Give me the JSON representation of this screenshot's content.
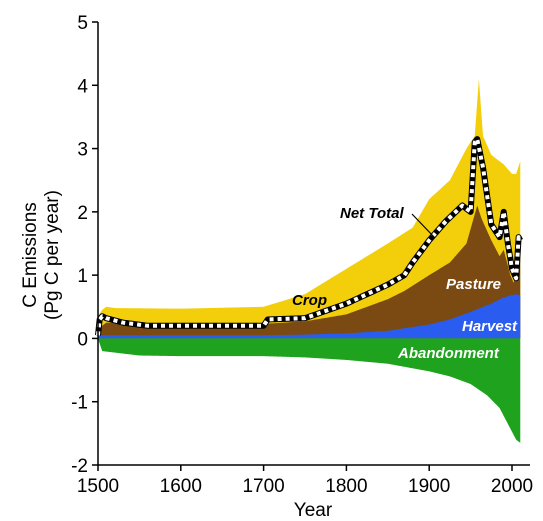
{
  "chart_data": {
    "type": "area",
    "xlabel": "Year",
    "ylabel_line1": "C Emissions",
    "ylabel_line2": "(Pg C per year)",
    "xlim": [
      1500,
      2010
    ],
    "ylim": [
      -2,
      5
    ],
    "xticks": [
      1500,
      1600,
      1700,
      1800,
      1900,
      2000
    ],
    "yticks": [
      -2,
      -1,
      0,
      1,
      2,
      3,
      4,
      5
    ],
    "grid": false,
    "colors": {
      "crop": "#f2cf0a",
      "pasture": "#7b4a12",
      "harvest": "#2a5cf0",
      "abandonment": "#1fa31f",
      "net_total": "#000000"
    },
    "series": [
      {
        "name": "Harvest",
        "kind": "positive-band",
        "x": [
          1500,
          1505,
          1600,
          1700,
          1750,
          1800,
          1850,
          1900,
          1925,
          1950,
          1975,
          1990,
          2005,
          2010
        ],
        "values": [
          0.05,
          0.05,
          0.05,
          0.05,
          0.06,
          0.08,
          0.12,
          0.22,
          0.3,
          0.42,
          0.55,
          0.65,
          0.7,
          0.68
        ]
      },
      {
        "name": "Pasture",
        "kind": "positive-band",
        "x": [
          1500,
          1505,
          1510,
          1600,
          1700,
          1750,
          1800,
          1850,
          1870,
          1900,
          1925,
          1945,
          1958,
          1963,
          1975,
          1985,
          1990,
          1998,
          2002,
          2008,
          2010
        ],
        "values": [
          0.15,
          0.2,
          0.25,
          0.22,
          0.23,
          0.27,
          0.38,
          0.62,
          0.75,
          1.0,
          1.2,
          1.5,
          2.1,
          1.9,
          1.55,
          1.3,
          1.4,
          1.0,
          0.88,
          1.2,
          1.25
        ]
      },
      {
        "name": "Crop",
        "kind": "positive-band",
        "x": [
          1500,
          1505,
          1510,
          1520,
          1600,
          1700,
          1750,
          1800,
          1850,
          1880,
          1900,
          1925,
          1945,
          1955,
          1960,
          1965,
          1975,
          1990,
          2000,
          2005,
          2010
        ],
        "values": [
          0.35,
          0.45,
          0.5,
          0.48,
          0.47,
          0.5,
          0.7,
          1.1,
          1.5,
          1.75,
          2.2,
          2.5,
          3.0,
          3.2,
          4.1,
          3.2,
          2.9,
          2.75,
          2.6,
          2.6,
          2.8
        ]
      },
      {
        "name": "Abandonment",
        "kind": "negative-band",
        "x": [
          1500,
          1505,
          1550,
          1600,
          1700,
          1750,
          1800,
          1850,
          1900,
          1925,
          1950,
          1970,
          1985,
          1995,
          2005,
          2010
        ],
        "values": [
          0,
          -0.2,
          -0.27,
          -0.28,
          -0.28,
          -0.3,
          -0.34,
          -0.4,
          -0.52,
          -0.6,
          -0.72,
          -0.9,
          -1.1,
          -1.35,
          -1.6,
          -1.65
        ]
      },
      {
        "name": "Net Total",
        "kind": "line",
        "x": [
          1500,
          1502,
          1505,
          1510,
          1530,
          1560,
          1600,
          1650,
          1700,
          1705,
          1750,
          1800,
          1850,
          1870,
          1880,
          1900,
          1920,
          1940,
          1950,
          1955,
          1958,
          1965,
          1975,
          1985,
          1990,
          1995,
          2000,
          2005,
          2008,
          2010
        ],
        "values": [
          0.05,
          0.3,
          0.35,
          0.32,
          0.25,
          0.2,
          0.2,
          0.2,
          0.2,
          0.3,
          0.32,
          0.55,
          0.85,
          1.0,
          1.2,
          1.55,
          1.85,
          2.1,
          2.0,
          3.1,
          3.15,
          2.7,
          1.8,
          1.6,
          2.0,
          1.5,
          1.1,
          0.95,
          1.6,
          1.55
        ]
      }
    ],
    "labels": {
      "crop": "Crop",
      "pasture": "Pasture",
      "harvest": "Harvest",
      "abandonment": "Abandonment",
      "net_total": "Net Total"
    }
  }
}
